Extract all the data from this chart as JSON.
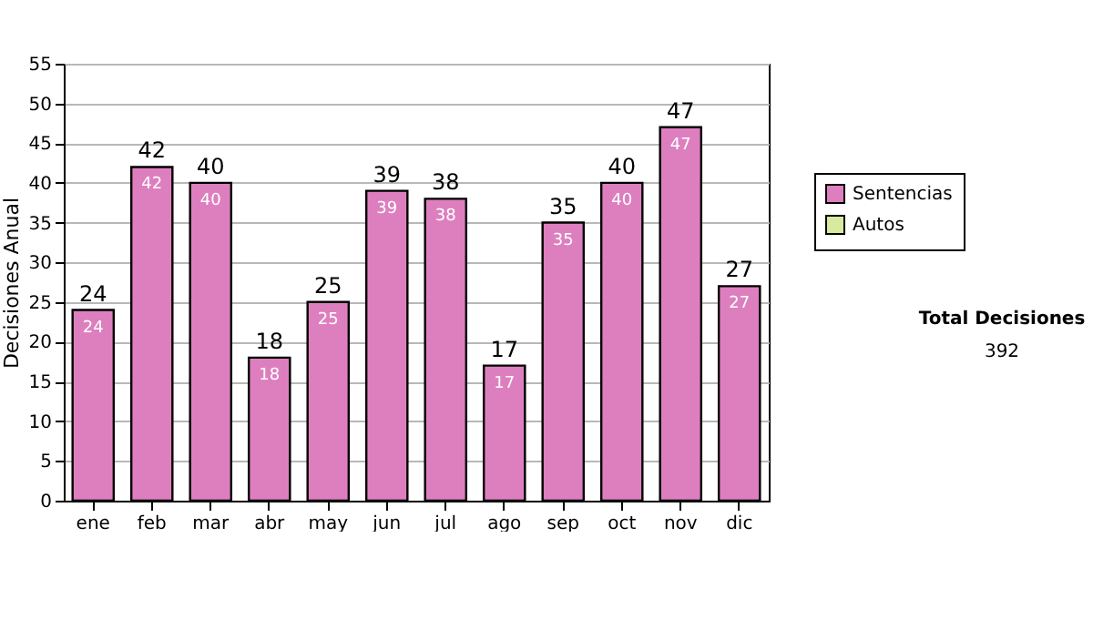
{
  "chart_data": {
    "type": "bar",
    "ylabel": "Decisiones Anual",
    "categories": [
      "ene",
      "feb",
      "mar",
      "abr",
      "may",
      "jun",
      "jul",
      "ago",
      "sep",
      "oct",
      "nov",
      "dic"
    ],
    "series": [
      {
        "name": "Sentencias",
        "color": "#dd7fbf",
        "values": [
          24,
          42,
          40,
          18,
          25,
          39,
          38,
          17,
          35,
          40,
          47,
          27
        ]
      },
      {
        "name": "Autos",
        "color": "#d8eaa0",
        "values": [
          null,
          null,
          null,
          null,
          null,
          null,
          null,
          null,
          null,
          null,
          null,
          null
        ]
      }
    ],
    "totals": [
      "24",
      "42",
      "40",
      "18",
      "25",
      "39",
      "38",
      "17",
      "35",
      "40",
      "47",
      "27"
    ],
    "data_labels": true,
    "ylim": [
      0,
      55
    ],
    "yticks": [
      0,
      5,
      10,
      15,
      20,
      25,
      30,
      35,
      40,
      45,
      50,
      55
    ],
    "grid": "y",
    "legend": "right",
    "annotations": [
      "Total Decisiones",
      "392"
    ]
  }
}
